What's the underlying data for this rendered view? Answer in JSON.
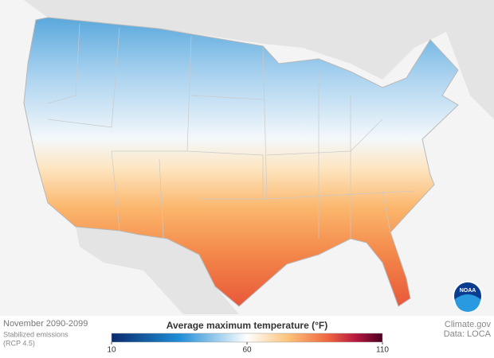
{
  "header": {
    "period": "November 2090-2099",
    "scenario_line1": "Stabilized emissions",
    "scenario_line2": "(RCP 4.5)"
  },
  "legend": {
    "title": "Average maximum temperature (°F)",
    "range": [
      10,
      110
    ],
    "ticks": [
      10,
      60,
      110
    ]
  },
  "credits": {
    "source": "Climate.gov",
    "data": "Data: LOCA",
    "logo": "NOAA"
  }
}
